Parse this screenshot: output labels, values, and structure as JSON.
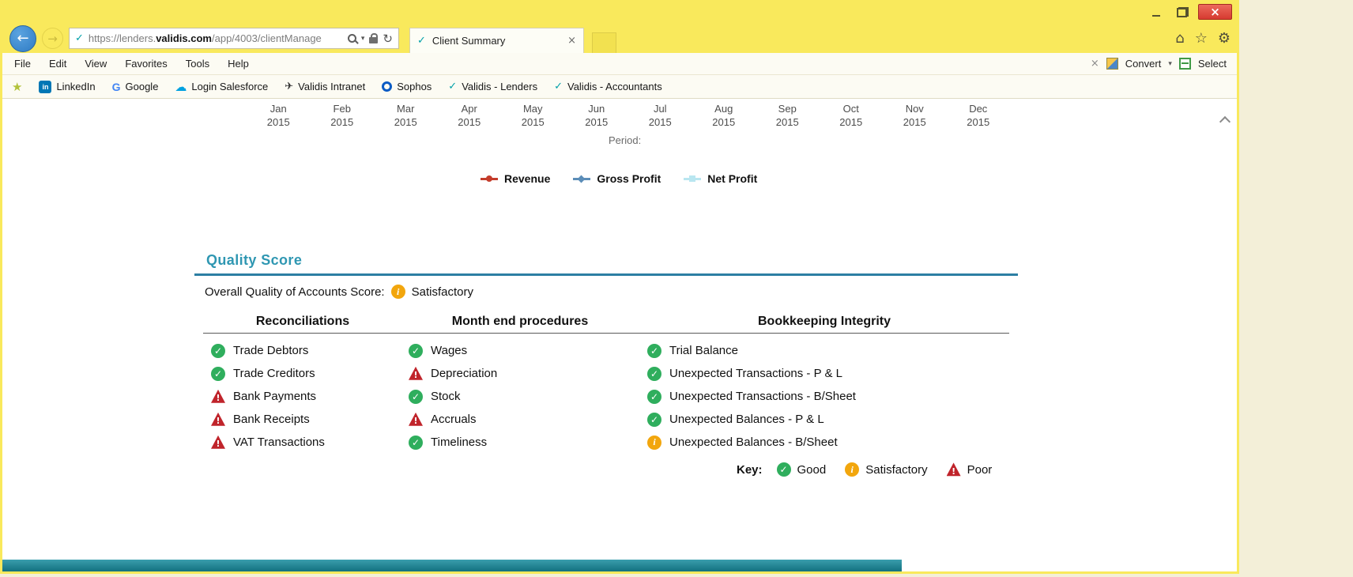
{
  "colors": {
    "good": "#2fae5d",
    "satisfactory": "#f2a60d",
    "poor": "#c0242b",
    "accent_teal": "#2f97b2",
    "rule_teal": "#2c7fa3",
    "title_yellow": "#f9e95c",
    "brand_check": "#00a0a8"
  },
  "window": {
    "controls": {
      "close": "×"
    }
  },
  "browser": {
    "nav": {
      "back": "←",
      "forward": "→"
    },
    "url": {
      "scheme": "https://",
      "subdomain": "lenders.",
      "domain": "validis.com",
      "path": "/app/4003/clientManage"
    },
    "url_icons": {
      "favicon": "✓",
      "search_caret": "▾",
      "refresh": "↻"
    },
    "tab": {
      "favicon": "✓",
      "title": "Client Summary",
      "close": "×"
    },
    "top_icons": {
      "home": "⌂",
      "favorites": "☆",
      "settings": "⚙"
    },
    "menu_items": [
      "File",
      "Edit",
      "View",
      "Favorites",
      "Tools",
      "Help"
    ],
    "addon_bar": {
      "close": "×",
      "convert": "Convert",
      "caret": "▾",
      "select": "Select"
    },
    "favorites_bar": {
      "star": "★",
      "items": [
        {
          "label": "LinkedIn",
          "icon": "in"
        },
        {
          "label": "Google",
          "icon": "G"
        },
        {
          "label": "Login Salesforce",
          "icon": "☁"
        },
        {
          "label": "Validis Intranet",
          "icon": "✈"
        },
        {
          "label": "Sophos",
          "icon": ""
        },
        {
          "label": "Validis - Lenders",
          "icon": "✓"
        },
        {
          "label": "Validis - Accountants",
          "icon": "✓"
        }
      ]
    }
  },
  "page": {
    "months": [
      {
        "month": "Jan",
        "year": "2015"
      },
      {
        "month": "Feb",
        "year": "2015"
      },
      {
        "month": "Mar",
        "year": "2015"
      },
      {
        "month": "Apr",
        "year": "2015"
      },
      {
        "month": "May",
        "year": "2015"
      },
      {
        "month": "Jun",
        "year": "2015"
      },
      {
        "month": "Jul",
        "year": "2015"
      },
      {
        "month": "Aug",
        "year": "2015"
      },
      {
        "month": "Sep",
        "year": "2015"
      },
      {
        "month": "Oct",
        "year": "2015"
      },
      {
        "month": "Nov",
        "year": "2015"
      },
      {
        "month": "Dec",
        "year": "2015"
      }
    ],
    "period_label": "Period:",
    "legend": [
      {
        "label": "Revenue",
        "color": "#c43c2b",
        "marker": "circle"
      },
      {
        "label": "Gross Profit",
        "color": "#5b8db8",
        "marker": "diamond"
      },
      {
        "label": "Net Profit",
        "color": "#b9e6f0",
        "marker": "square"
      }
    ],
    "quality_score": {
      "title": "Quality Score",
      "overall_label": "Overall Quality of Accounts Score:",
      "overall_status": "satisfactory",
      "overall_status_label": "Satisfactory",
      "columns": [
        {
          "header": "Reconciliations",
          "items": [
            {
              "label": "Trade Debtors",
              "status": "good"
            },
            {
              "label": "Trade Creditors",
              "status": "good"
            },
            {
              "label": "Bank Payments",
              "status": "poor"
            },
            {
              "label": "Bank Receipts",
              "status": "poor"
            },
            {
              "label": "VAT Transactions",
              "status": "poor"
            }
          ]
        },
        {
          "header": "Month end procedures",
          "items": [
            {
              "label": "Wages",
              "status": "good"
            },
            {
              "label": "Depreciation",
              "status": "poor"
            },
            {
              "label": "Stock",
              "status": "good"
            },
            {
              "label": "Accruals",
              "status": "poor"
            },
            {
              "label": "Timeliness",
              "status": "good"
            }
          ]
        },
        {
          "header": "Bookkeeping Integrity",
          "items": [
            {
              "label": "Trial Balance",
              "status": "good"
            },
            {
              "label": "Unexpected Transactions - P & L",
              "status": "good"
            },
            {
              "label": "Unexpected Transactions - B/Sheet",
              "status": "good"
            },
            {
              "label": "Unexpected Balances - P & L",
              "status": "good"
            },
            {
              "label": "Unexpected Balances - B/Sheet",
              "status": "satisfactory"
            }
          ]
        }
      ],
      "key": {
        "label": "Key:",
        "entries": [
          {
            "label": "Good",
            "status": "good"
          },
          {
            "label": "Satisfactory",
            "status": "satisfactory"
          },
          {
            "label": "Poor",
            "status": "poor"
          }
        ]
      }
    }
  }
}
